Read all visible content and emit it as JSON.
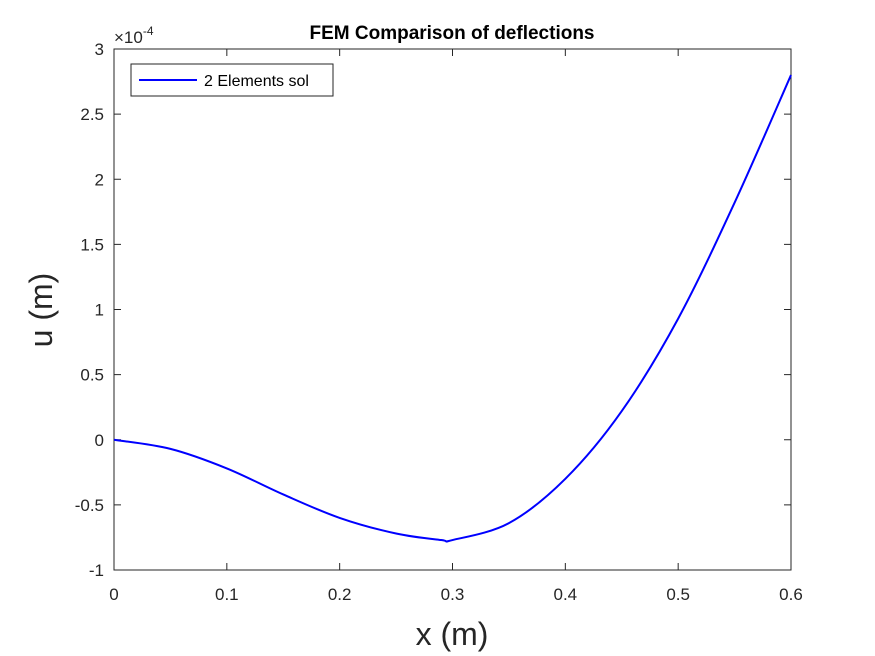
{
  "chart_data": {
    "type": "line",
    "title": "FEM Comparison of deflections",
    "xlabel": "x (m)",
    "ylabel": "u (m)",
    "xlim": [
      0,
      0.6
    ],
    "ylim": [
      -1,
      3
    ],
    "y_exponent_label": "×10",
    "y_exponent_power": "-4",
    "xticks": [
      "0",
      "0.1",
      "0.2",
      "0.3",
      "0.4",
      "0.5",
      "0.6"
    ],
    "yticks": [
      "-1",
      "-0.5",
      "0",
      "0.5",
      "1",
      "1.5",
      "2",
      "2.5",
      "3"
    ],
    "grid": false,
    "legend_position": "top-left",
    "series": [
      {
        "name": "2 Elements sol",
        "color": "#0000ff",
        "x": [
          0,
          0.05,
          0.1,
          0.15,
          0.2,
          0.25,
          0.29,
          0.3,
          0.35,
          0.4,
          0.45,
          0.5,
          0.55,
          0.6
        ],
        "y": [
          0,
          -0.07,
          -0.22,
          -0.42,
          -0.6,
          -0.72,
          -0.77,
          -0.77,
          -0.64,
          -0.3,
          0.22,
          0.93,
          1.82,
          2.8
        ]
      }
    ]
  }
}
